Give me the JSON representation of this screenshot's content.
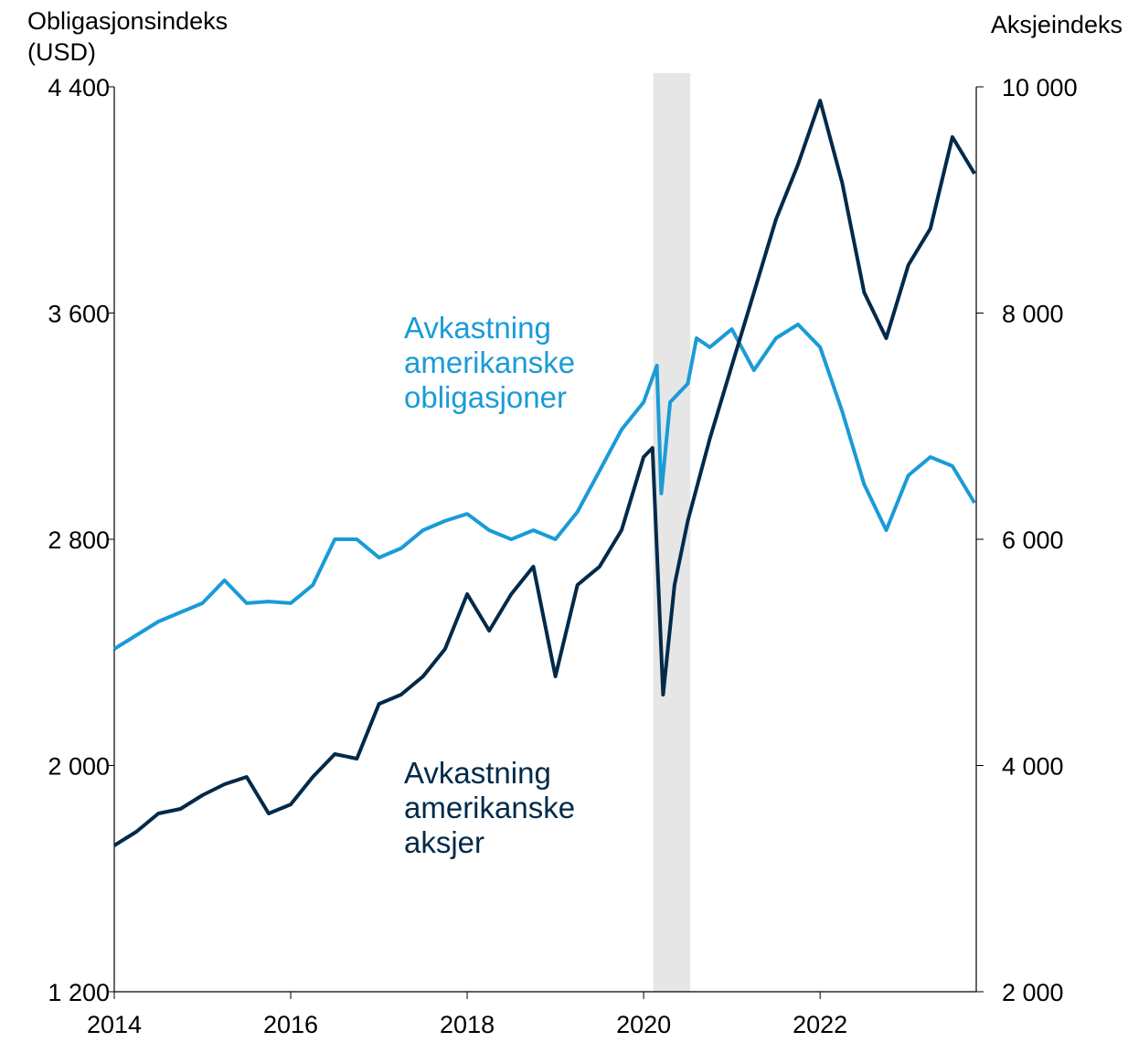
{
  "chart_data": {
    "type": "line",
    "y_label": [
      "Obligasjonsindeks",
      "(USD)"
    ],
    "y2_label": "Aksjeindeks",
    "xlim": [
      2014,
      2023.77
    ],
    "xticks": [
      2014,
      2016,
      2018,
      2020,
      2022
    ],
    "ylim": [
      1200,
      4400
    ],
    "yticks": [
      {
        "value": 1200,
        "label": "1 200"
      },
      {
        "value": 2000,
        "label": "2 000"
      },
      {
        "value": 2800,
        "label": "2 800"
      },
      {
        "value": 3600,
        "label": "3 600"
      },
      {
        "value": 4400,
        "label": "4 400"
      }
    ],
    "y2lim": [
      2000,
      10000
    ],
    "y2ticks": [
      {
        "value": 2000,
        "label": "2 000"
      },
      {
        "value": 4000,
        "label": "4 000"
      },
      {
        "value": 6000,
        "label": "6 000"
      },
      {
        "value": 8000,
        "label": "8 000"
      },
      {
        "value": 10000,
        "label": "10 000"
      }
    ],
    "shaded": [
      2020.11,
      2020.53
    ],
    "series": [
      {
        "name": [
          "Avkastning",
          "amerikanske",
          "obligasjoner"
        ],
        "color": "#1a9bd7",
        "axis": "y",
        "x": [
          2014.0,
          2014.5,
          2015.0,
          2015.25,
          2015.5,
          2015.75,
          2016.0,
          2016.25,
          2016.5,
          2016.75,
          2017.0,
          2017.25,
          2017.5,
          2017.75,
          2018.0,
          2018.25,
          2018.5,
          2018.75,
          2019.0,
          2019.25,
          2019.5,
          2019.75,
          2020.0,
          2020.15,
          2020.2,
          2020.3,
          2020.5,
          2020.6,
          2020.75,
          2021.0,
          2021.25,
          2021.5,
          2021.75,
          2022.0,
          2022.25,
          2022.5,
          2022.75,
          2023.0,
          2023.25,
          2023.5,
          2023.75
        ],
        "values": [
          2412,
          2509,
          2574,
          2655,
          2574,
          2580,
          2574,
          2638,
          2800,
          2800,
          2735,
          2768,
          2832,
          2865,
          2890,
          2832,
          2800,
          2832,
          2800,
          2897,
          3042,
          3188,
          3285,
          3414,
          2962,
          3285,
          3350,
          3511,
          3479,
          3543,
          3398,
          3511,
          3560,
          3479,
          3253,
          2994,
          2832,
          3026,
          3091,
          3059,
          2929
        ]
      },
      {
        "name": [
          "Avkastning",
          "amerikanske",
          "aksjer"
        ],
        "color": "#002a4a",
        "axis": "y2",
        "x": [
          2014.0,
          2014.25,
          2014.5,
          2014.75,
          2015.0,
          2015.25,
          2015.5,
          2015.75,
          2016.0,
          2016.25,
          2016.5,
          2016.75,
          2017.0,
          2017.25,
          2017.5,
          2017.75,
          2018.0,
          2018.25,
          2018.5,
          2018.75,
          2019.0,
          2019.25,
          2019.5,
          2019.75,
          2020.0,
          2020.1,
          2020.22,
          2020.35,
          2020.5,
          2020.75,
          2021.0,
          2021.25,
          2021.5,
          2021.75,
          2022.0,
          2022.25,
          2022.5,
          2022.75,
          2023.0,
          2023.25,
          2023.5,
          2023.75
        ],
        "values": [
          3293,
          3414,
          3576,
          3616,
          3737,
          3834,
          3899,
          3576,
          3656,
          3899,
          4101,
          4061,
          4545,
          4626,
          4788,
          5030,
          5515,
          5192,
          5515,
          5758,
          4788,
          5596,
          5758,
          6081,
          6727,
          6808,
          4626,
          5596,
          6162,
          6889,
          7535,
          8182,
          8828,
          9313,
          9879,
          9152,
          8182,
          7778,
          8424,
          8747,
          9556,
          9232
        ]
      }
    ]
  }
}
